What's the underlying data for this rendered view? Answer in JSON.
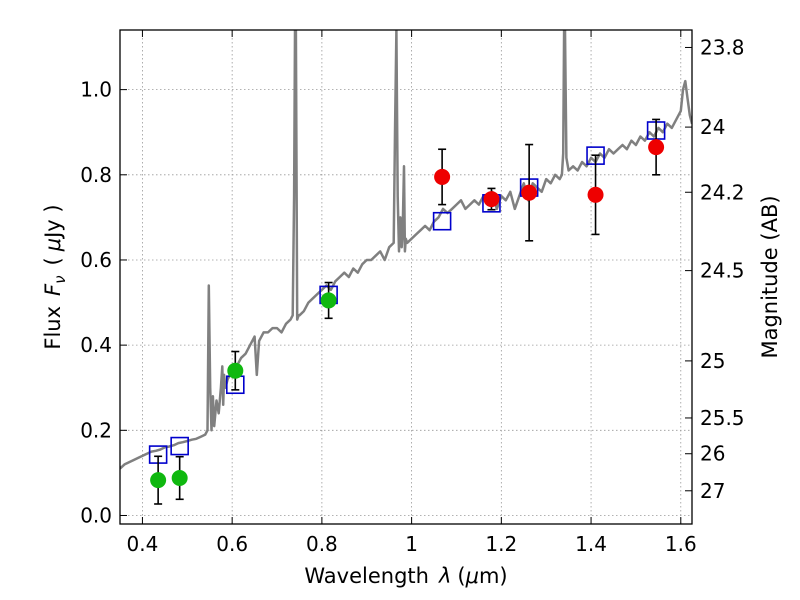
{
  "chart_data": {
    "type": "scatter",
    "xlabel_text": "Wavelength",
    "xlabel_symbol": "λ",
    "xlabel_unit_open": "(",
    "xlabel_unit_mu": "μ",
    "xlabel_unit_rest": "m)",
    "ylabel_text": "Flux",
    "ylabel_symbol": "F",
    "ylabel_sub": "ν",
    "ylabel_unit_open": "(",
    "ylabel_unit_mu": "μ",
    "ylabel_unit_rest": "Jy )",
    "y2label": "Magnitude (AB)",
    "xlim": [
      0.35,
      1.625
    ],
    "ylim": [
      -0.02,
      1.14
    ],
    "grid": true,
    "xticks": [
      0.4,
      0.6,
      0.8,
      1.0,
      1.2,
      1.4,
      1.6
    ],
    "xtick_labels": [
      "0.4",
      "0.6",
      "0.8",
      "1",
      "1.2",
      "1.4",
      "1.6"
    ],
    "yticks": [
      0.0,
      0.2,
      0.4,
      0.6,
      0.8,
      1.0
    ],
    "ytick_labels": [
      "0.0",
      "0.2",
      "0.4",
      "0.6",
      "0.8",
      "1.0"
    ],
    "y2ticks": [
      {
        "label": "23.8",
        "flux": 1.099
      },
      {
        "label": "24",
        "flux": 0.912
      },
      {
        "label": "24.2",
        "flux": 0.759
      },
      {
        "label": "24.5",
        "flux": 0.575
      },
      {
        "label": "25",
        "flux": 0.363
      },
      {
        "label": "25.5",
        "flux": 0.229
      },
      {
        "label": "26",
        "flux": 0.145
      },
      {
        "label": "27",
        "flux": 0.058
      }
    ],
    "colors": {
      "template": "#808080",
      "model": "#0000cc",
      "ground": "#10b810",
      "space": "#ee0000",
      "errorbar": "#000000",
      "grid": "#999999"
    },
    "template_spectrum": {
      "x": [
        0.35,
        0.36,
        0.37,
        0.38,
        0.39,
        0.4,
        0.41,
        0.42,
        0.43,
        0.44,
        0.45,
        0.46,
        0.47,
        0.48,
        0.49,
        0.5,
        0.51,
        0.52,
        0.53,
        0.54,
        0.545,
        0.548,
        0.551,
        0.554,
        0.557,
        0.56,
        0.565,
        0.57,
        0.575,
        0.578,
        0.58,
        0.582,
        0.585,
        0.59,
        0.6,
        0.61,
        0.62,
        0.63,
        0.64,
        0.65,
        0.655,
        0.66,
        0.67,
        0.68,
        0.69,
        0.7,
        0.71,
        0.72,
        0.73,
        0.735,
        0.738,
        0.74,
        0.742,
        0.745,
        0.748,
        0.75,
        0.76,
        0.77,
        0.78,
        0.79,
        0.8,
        0.81,
        0.82,
        0.83,
        0.84,
        0.85,
        0.86,
        0.87,
        0.88,
        0.89,
        0.9,
        0.91,
        0.92,
        0.93,
        0.94,
        0.95,
        0.96,
        0.963,
        0.966,
        0.969,
        0.972,
        0.975,
        0.978,
        0.98,
        0.983,
        0.985,
        0.987,
        0.99,
        1.0,
        1.01,
        1.02,
        1.03,
        1.04,
        1.05,
        1.06,
        1.07,
        1.08,
        1.09,
        1.1,
        1.11,
        1.12,
        1.13,
        1.14,
        1.15,
        1.16,
        1.17,
        1.18,
        1.19,
        1.2,
        1.21,
        1.22,
        1.23,
        1.24,
        1.25,
        1.26,
        1.27,
        1.28,
        1.29,
        1.3,
        1.31,
        1.32,
        1.33,
        1.335,
        1.338,
        1.34,
        1.342,
        1.345,
        1.35,
        1.36,
        1.37,
        1.38,
        1.39,
        1.4,
        1.41,
        1.42,
        1.43,
        1.44,
        1.45,
        1.46,
        1.47,
        1.48,
        1.49,
        1.5,
        1.51,
        1.52,
        1.53,
        1.54,
        1.55,
        1.56,
        1.57,
        1.58,
        1.59,
        1.6,
        1.605,
        1.61,
        1.615,
        1.62,
        1.625
      ],
      "y": [
        0.11,
        0.12,
        0.125,
        0.13,
        0.135,
        0.14,
        0.145,
        0.15,
        0.152,
        0.155,
        0.16,
        0.162,
        0.165,
        0.17,
        0.172,
        0.175,
        0.178,
        0.18,
        0.185,
        0.19,
        0.2,
        0.54,
        0.3,
        0.2,
        0.28,
        0.21,
        0.27,
        0.24,
        0.3,
        0.35,
        0.26,
        0.33,
        0.3,
        0.32,
        0.34,
        0.35,
        0.37,
        0.38,
        0.4,
        0.42,
        0.33,
        0.41,
        0.43,
        0.43,
        0.44,
        0.44,
        0.43,
        0.45,
        0.46,
        0.47,
        0.75,
        1.14,
        1.14,
        0.46,
        0.47,
        0.47,
        0.48,
        0.5,
        0.51,
        0.52,
        0.53,
        0.54,
        0.53,
        0.55,
        0.56,
        0.57,
        0.56,
        0.58,
        0.57,
        0.59,
        0.6,
        0.6,
        0.61,
        0.62,
        0.6,
        0.63,
        0.64,
        0.9,
        1.14,
        0.75,
        0.62,
        0.7,
        0.63,
        0.66,
        0.82,
        0.62,
        0.65,
        0.64,
        0.65,
        0.66,
        0.67,
        0.68,
        0.67,
        0.69,
        0.7,
        0.72,
        0.71,
        0.72,
        0.73,
        0.74,
        0.72,
        0.73,
        0.74,
        0.73,
        0.75,
        0.73,
        0.76,
        0.72,
        0.75,
        0.74,
        0.76,
        0.72,
        0.75,
        0.78,
        0.74,
        0.78,
        0.77,
        0.76,
        0.79,
        0.78,
        0.8,
        0.79,
        0.8,
        0.85,
        1.14,
        1.14,
        0.84,
        0.81,
        0.82,
        0.81,
        0.83,
        0.82,
        0.84,
        0.83,
        0.85,
        0.84,
        0.86,
        0.85,
        0.86,
        0.87,
        0.86,
        0.88,
        0.87,
        0.89,
        0.88,
        0.9,
        0.89,
        0.91,
        0.9,
        0.92,
        0.91,
        0.93,
        0.95,
        1.0,
        1.02,
        0.98,
        0.94,
        0.92
      ]
    },
    "model_points": {
      "x": [
        0.435,
        0.483,
        0.607,
        0.815,
        1.068,
        1.178,
        1.262,
        1.41,
        1.545
      ],
      "y": [
        0.143,
        0.163,
        0.307,
        0.518,
        0.691,
        0.733,
        0.77,
        0.845,
        0.904
      ]
    },
    "ground_based": {
      "x": [
        0.435,
        0.483,
        0.607,
        0.815
      ],
      "y": [
        0.083,
        0.088,
        0.34,
        0.505
      ],
      "err": [
        0.056,
        0.05,
        0.045,
        0.042
      ]
    },
    "space_based": {
      "x": [
        1.068,
        1.178,
        1.262,
        1.41,
        1.545
      ],
      "y": [
        0.795,
        0.743,
        0.758,
        0.753,
        0.865
      ],
      "err": [
        0.065,
        0.025,
        0.113,
        0.093,
        0.065
      ]
    }
  }
}
